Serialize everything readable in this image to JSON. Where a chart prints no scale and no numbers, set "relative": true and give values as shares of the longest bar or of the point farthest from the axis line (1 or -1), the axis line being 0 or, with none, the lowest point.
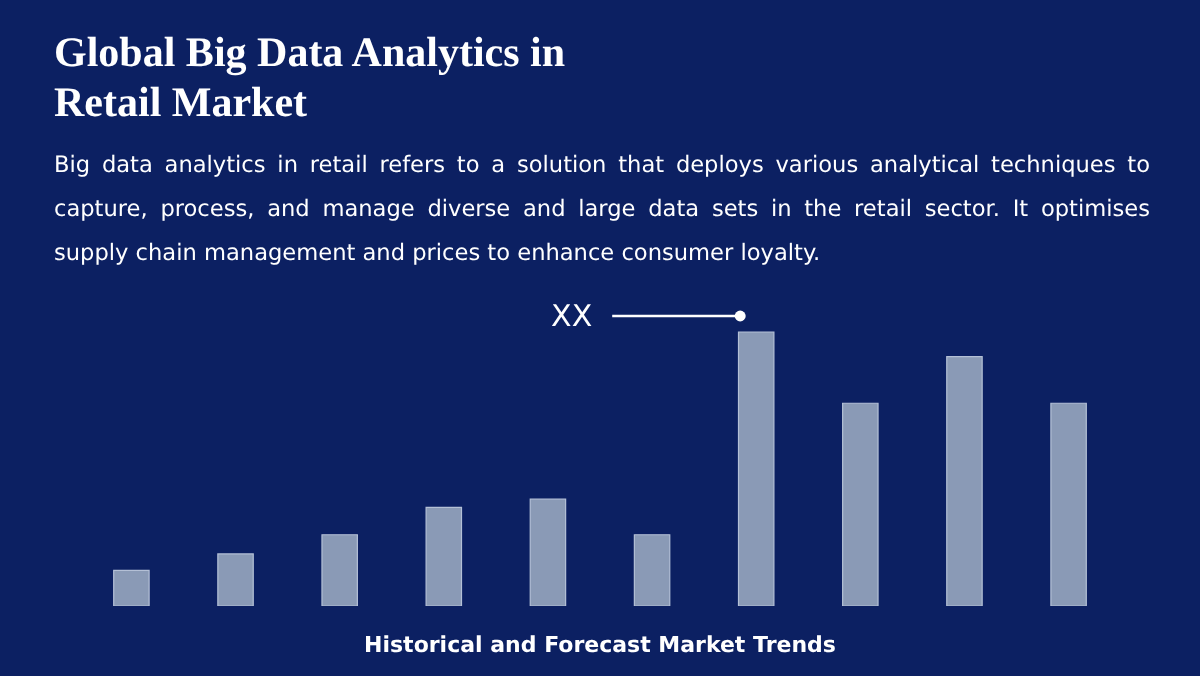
{
  "chart_data": {
    "type": "bar",
    "title": "Global Big Data Analytics in Retail Market",
    "subtitle": "Big data analytics in retail refers to a solution that deploys various analytical techniques to capture, process, and manage diverse and large data sets in the retail sector. It optimises supply chain management and prices to enhance consumer loyalty.",
    "xlabel": "Historical and Forecast Market Trends",
    "categories": [
      null,
      null,
      null,
      null,
      null,
      null,
      null,
      null,
      null,
      null
    ],
    "values": [
      0.13,
      0.19,
      0.26,
      0.36,
      0.39,
      0.26,
      1,
      0.74,
      0.91,
      0.74
    ],
    "color": "#8a9ab6",
    "relative": true,
    "annotations": [
      "XX"
    ]
  }
}
